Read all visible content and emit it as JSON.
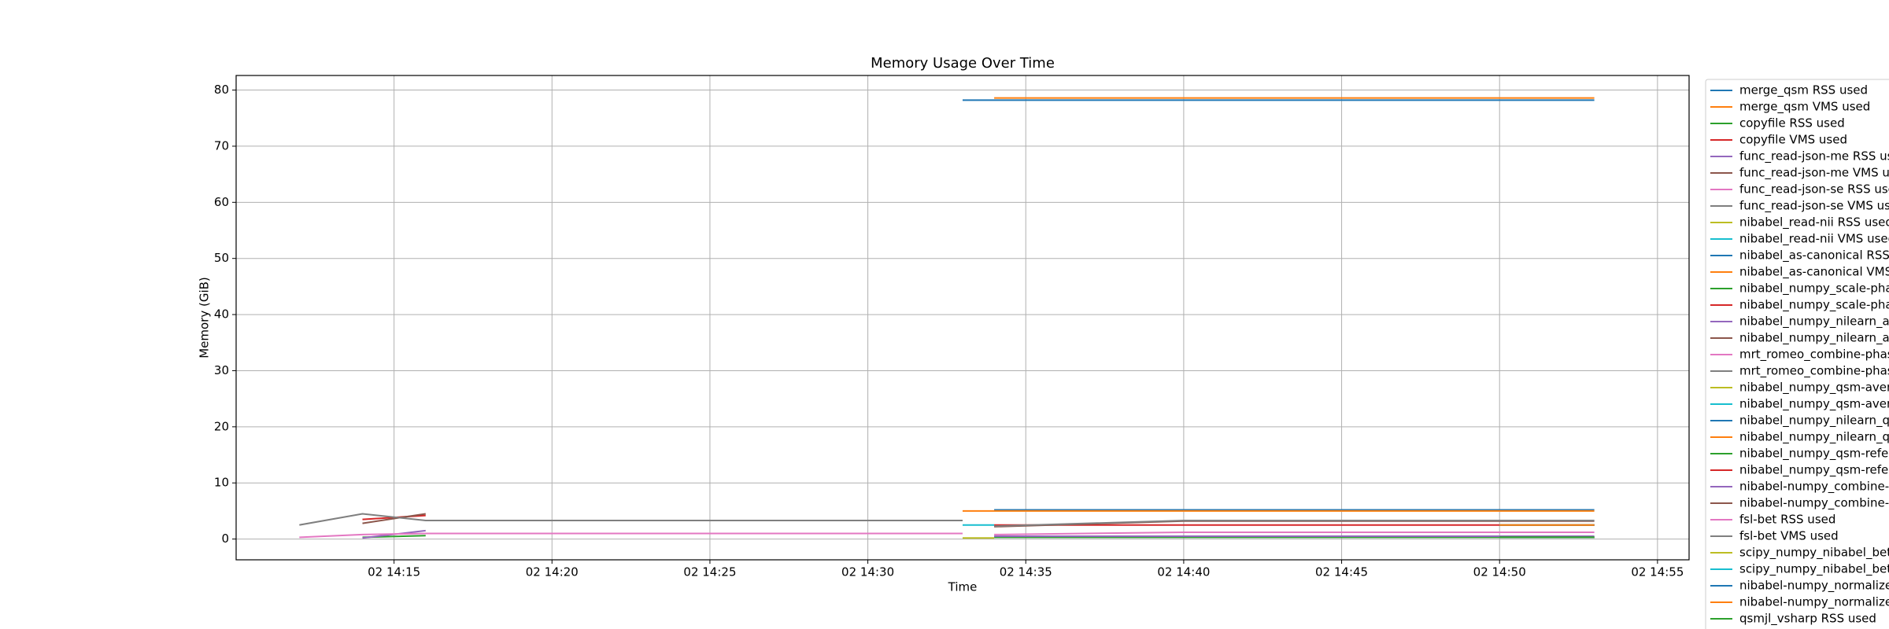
{
  "chart_data": {
    "type": "line",
    "title": "Memory Usage Over Time",
    "x_label": "Time",
    "y_label": "Memory (GiB)",
    "x": [
      "02 14:12",
      "02 14:14",
      "02 14:16",
      "02 14:20",
      "02 14:30",
      "02 14:33",
      "02 14:34",
      "02 14:40",
      "02 14:50",
      "02 14:53"
    ],
    "xlim": [
      "02 14:10",
      "02 14:56"
    ],
    "xticks": [
      "02 14:15",
      "02 14:20",
      "02 14:25",
      "02 14:30",
      "02 14:35",
      "02 14:40",
      "02 14:45",
      "02 14:50",
      "02 14:55"
    ],
    "ylim": [
      -3.7,
      82.6
    ],
    "yticks": [
      0,
      10,
      20,
      30,
      40,
      50,
      60,
      70,
      80
    ],
    "grid": true,
    "legend": "outside-right",
    "series": [
      {
        "name": "merge_qsm RSS used",
        "color": "#1f77b4",
        "values": [
          null,
          null,
          null,
          null,
          null,
          78.2,
          78.2,
          78.2,
          78.2,
          78.2
        ]
      },
      {
        "name": "merge_qsm VMS used",
        "color": "#ff7f0e",
        "values": [
          null,
          null,
          null,
          null,
          null,
          null,
          78.6,
          78.6,
          78.6,
          78.6
        ]
      },
      {
        "name": "copyfile RSS used",
        "color": "#2ca02c",
        "values": [
          null,
          0.3,
          0.6,
          null,
          null,
          null,
          null,
          null,
          null,
          null
        ]
      },
      {
        "name": "copyfile VMS used",
        "color": "#d62728",
        "values": [
          null,
          3.5,
          4.2,
          null,
          null,
          null,
          null,
          null,
          null,
          null
        ]
      },
      {
        "name": "func_read-json-me RSS use",
        "color": "#9467bd",
        "values": [
          null,
          0.2,
          1.5,
          null,
          null,
          null,
          null,
          null,
          null,
          null
        ]
      },
      {
        "name": "func_read-json-me VMS use",
        "color": "#8c564b",
        "values": [
          null,
          2.8,
          4.5,
          null,
          null,
          null,
          null,
          null,
          null,
          null
        ]
      },
      {
        "name": "func_read-json-se RSS usec",
        "color": "#e377c2",
        "values": [
          0.3,
          0.8,
          1.0,
          1.0,
          1.0,
          1.0,
          null,
          null,
          null,
          null
        ]
      },
      {
        "name": "func_read-json-se VMS usec",
        "color": "#7f7f7f",
        "values": [
          2.5,
          4.5,
          3.3,
          3.3,
          3.3,
          3.3,
          null,
          null,
          null,
          null
        ]
      },
      {
        "name": "nibabel_read-nii RSS used",
        "color": "#bcbd22",
        "values": [
          null,
          null,
          null,
          null,
          null,
          0.2,
          0.2,
          null,
          null,
          null
        ]
      },
      {
        "name": "nibabel_read-nii VMS used",
        "color": "#17becf",
        "values": [
          null,
          null,
          null,
          null,
          null,
          2.5,
          2.5,
          null,
          null,
          null
        ]
      },
      {
        "name": "nibabel_as-canonical RSS u",
        "color": "#1f77b4",
        "values": [
          null,
          null,
          null,
          null,
          null,
          null,
          5.2,
          5.2,
          5.2,
          5.2
        ]
      },
      {
        "name": "nibabel_as-canonical VMS u",
        "color": "#ff7f0e",
        "values": [
          null,
          null,
          null,
          null,
          null,
          5.0,
          5.0,
          5.0,
          5.0,
          5.0
        ]
      },
      {
        "name": "nibabel_numpy_scale-phase",
        "color": "#2ca02c",
        "values": [
          null,
          null,
          null,
          null,
          null,
          null,
          0.3,
          0.3,
          0.3,
          0.3
        ]
      },
      {
        "name": "nibabel_numpy_scale-phas",
        "color": "#d62728",
        "values": [
          null,
          null,
          null,
          null,
          null,
          null,
          2.5,
          2.5,
          2.5,
          2.5
        ]
      },
      {
        "name": "nibabel_numpy_nilearn_axi",
        "color": "#9467bd",
        "values": [
          null,
          null,
          null,
          null,
          null,
          null,
          0.5,
          0.5,
          0.5,
          0.5
        ]
      },
      {
        "name": "nibabel_numpy_nilearn_axi",
        "color": "#8c564b",
        "values": [
          null,
          null,
          null,
          null,
          null,
          null,
          2.2,
          3.2,
          3.2,
          3.2
        ]
      },
      {
        "name": "mrt_romeo_combine-phase",
        "color": "#e377c2",
        "values": [
          null,
          null,
          null,
          null,
          null,
          null,
          0.8,
          1.2,
          1.2,
          1.2
        ]
      },
      {
        "name": "mrt_romeo_combine-phase",
        "color": "#7f7f7f",
        "values": [
          null,
          null,
          null,
          null,
          null,
          null,
          2.3,
          3.3,
          3.3,
          3.3
        ]
      },
      {
        "name": "nibabel_numpy_qsm-avera",
        "color": "#bcbd22",
        "values": [
          null,
          null,
          null,
          null,
          null,
          null,
          null,
          null,
          0.3,
          0.3
        ]
      },
      {
        "name": "nibabel_numpy_qsm-avera",
        "color": "#17becf",
        "values": [
          null,
          null,
          null,
          null,
          null,
          null,
          null,
          null,
          2.5,
          2.5
        ]
      },
      {
        "name": "nibabel_numpy_nilearn_qsr",
        "color": "#1f77b4",
        "values": [
          null,
          null,
          null,
          null,
          null,
          null,
          null,
          null,
          0.3,
          0.3
        ]
      },
      {
        "name": "nibabel_numpy_nilearn_qsr",
        "color": "#ff7f0e",
        "values": [
          null,
          null,
          null,
          null,
          null,
          null,
          null,
          null,
          2.5,
          2.5
        ]
      },
      {
        "name": "nibabel_numpy_qsm-refere",
        "color": "#2ca02c",
        "values": [
          null,
          null,
          null,
          null,
          null,
          null,
          null,
          null,
          0.3,
          0.3
        ]
      },
      {
        "name": "nibabel_numpy_qsm-refere",
        "color": "#d62728",
        "values": [
          null,
          null,
          null,
          null,
          null,
          null,
          null,
          null,
          2.5,
          2.5
        ]
      },
      {
        "name": "nibabel-numpy_combine-m",
        "color": "#9467bd",
        "values": [
          null,
          null,
          null,
          null,
          null,
          null,
          null,
          null,
          0.3,
          0.3
        ]
      },
      {
        "name": "nibabel-numpy_combine-m",
        "color": "#8c564b",
        "values": [
          null,
          null,
          null,
          null,
          null,
          null,
          null,
          null,
          2.5,
          2.5
        ]
      },
      {
        "name": "fsl-bet RSS used",
        "color": "#e377c2",
        "values": [
          null,
          null,
          null,
          null,
          null,
          null,
          null,
          null,
          0.3,
          0.3
        ]
      },
      {
        "name": "fsl-bet VMS used",
        "color": "#7f7f7f",
        "values": [
          null,
          null,
          null,
          null,
          null,
          null,
          null,
          null,
          2.5,
          2.5
        ]
      },
      {
        "name": "scipy_numpy_nibabel_bet_",
        "color": "#bcbd22",
        "values": [
          null,
          null,
          null,
          null,
          null,
          null,
          null,
          null,
          0.3,
          0.3
        ]
      },
      {
        "name": "scipy_numpy_nibabel_bet_",
        "color": "#17becf",
        "values": [
          null,
          null,
          null,
          null,
          null,
          null,
          null,
          null,
          2.5,
          2.5
        ]
      },
      {
        "name": "nibabel-numpy_normalize-f",
        "color": "#1f77b4",
        "values": [
          null,
          null,
          null,
          null,
          null,
          null,
          null,
          null,
          0.3,
          0.3
        ]
      },
      {
        "name": "nibabel-numpy_normalize-f",
        "color": "#ff7f0e",
        "values": [
          null,
          null,
          null,
          null,
          null,
          null,
          null,
          null,
          2.5,
          2.5
        ]
      },
      {
        "name": "qsmjl_vsharp RSS used",
        "color": "#2ca02c",
        "values": [
          null,
          null,
          null,
          null,
          null,
          null,
          null,
          null,
          0.3,
          0.3
        ]
      }
    ]
  }
}
